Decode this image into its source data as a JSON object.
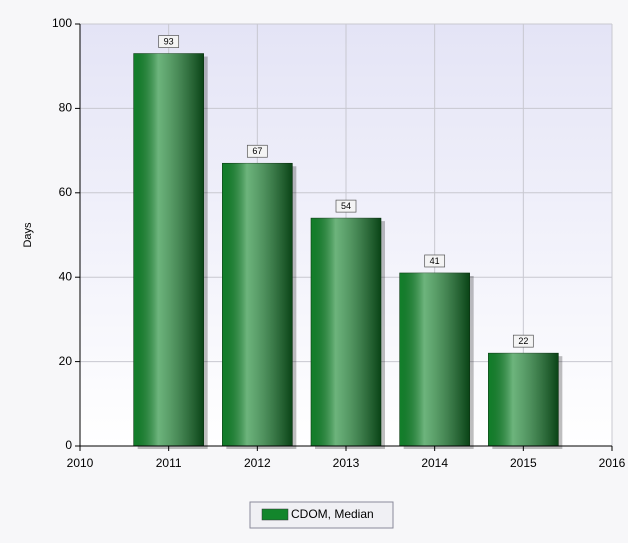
{
  "chart_data": {
    "type": "bar",
    "x": [
      2011,
      2012,
      2013,
      2014,
      2015
    ],
    "series": [
      {
        "name": "CDOM, Median",
        "color": "#13862c",
        "values": [
          93,
          67,
          54,
          41,
          22
        ]
      }
    ],
    "y_label": "Days",
    "xlim": [
      2010,
      2016
    ],
    "xticks": [
      2010,
      2011,
      2012,
      2013,
      2014,
      2015,
      2016
    ],
    "ylim": [
      0,
      100
    ],
    "yticks": [
      0,
      20,
      40,
      60,
      80,
      100
    ],
    "grid": true,
    "legend": "bottom"
  }
}
